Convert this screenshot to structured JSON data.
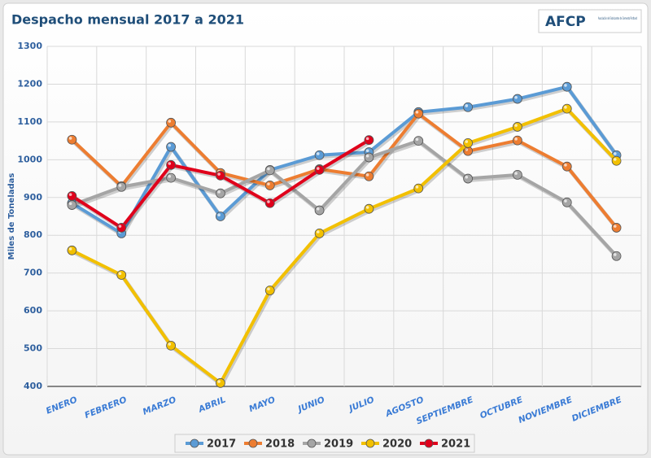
{
  "chart_data": {
    "type": "line",
    "title": "Despacho mensual 2017 a 2021",
    "logo": "AFCP",
    "logo_subtitle": "Asociación de Fabricantes de Cemento Portland",
    "y_label": "Miles de Toneladas",
    "categories": [
      "ENERO",
      "FEBRERO",
      "MARZO",
      "ABRIL",
      "MAYO",
      "JUNIO",
      "JULIO",
      "AGOSTO",
      "SEPTIEMBRE",
      "OCTUBRE",
      "NOVIEMBRE",
      "DICIEMBRE"
    ],
    "ylim": [
      400,
      1300
    ],
    "yticks": [
      400,
      500,
      600,
      700,
      800,
      900,
      1000,
      1100,
      1200,
      1300
    ],
    "grid": true,
    "legend": "bottom",
    "series": [
      {
        "name": "2017",
        "color": "#5b9bd5",
        "values": [
          885,
          805,
          1034,
          850,
          973,
          1012,
          1020,
          1126,
          1139,
          1161,
          1193,
          1012
        ]
      },
      {
        "name": "2018",
        "color": "#ed7d31",
        "values": [
          1053,
          930,
          1098,
          965,
          932,
          975,
          956,
          1122,
          1023,
          1051,
          982,
          820
        ]
      },
      {
        "name": "2019",
        "color": "#a5a5a5",
        "values": [
          880,
          928,
          952,
          911,
          972,
          866,
          1006,
          1050,
          950,
          960,
          887,
          745
        ]
      },
      {
        "name": "2020",
        "color": "#f2c000",
        "values": [
          760,
          695,
          508,
          409,
          654,
          805,
          870,
          924,
          1044,
          1087,
          1135,
          997
        ]
      },
      {
        "name": "2021",
        "color": "#e0001b",
        "values": [
          904,
          820,
          986,
          958,
          885,
          973,
          1052,
          null,
          null,
          null,
          null,
          null
        ]
      }
    ]
  }
}
